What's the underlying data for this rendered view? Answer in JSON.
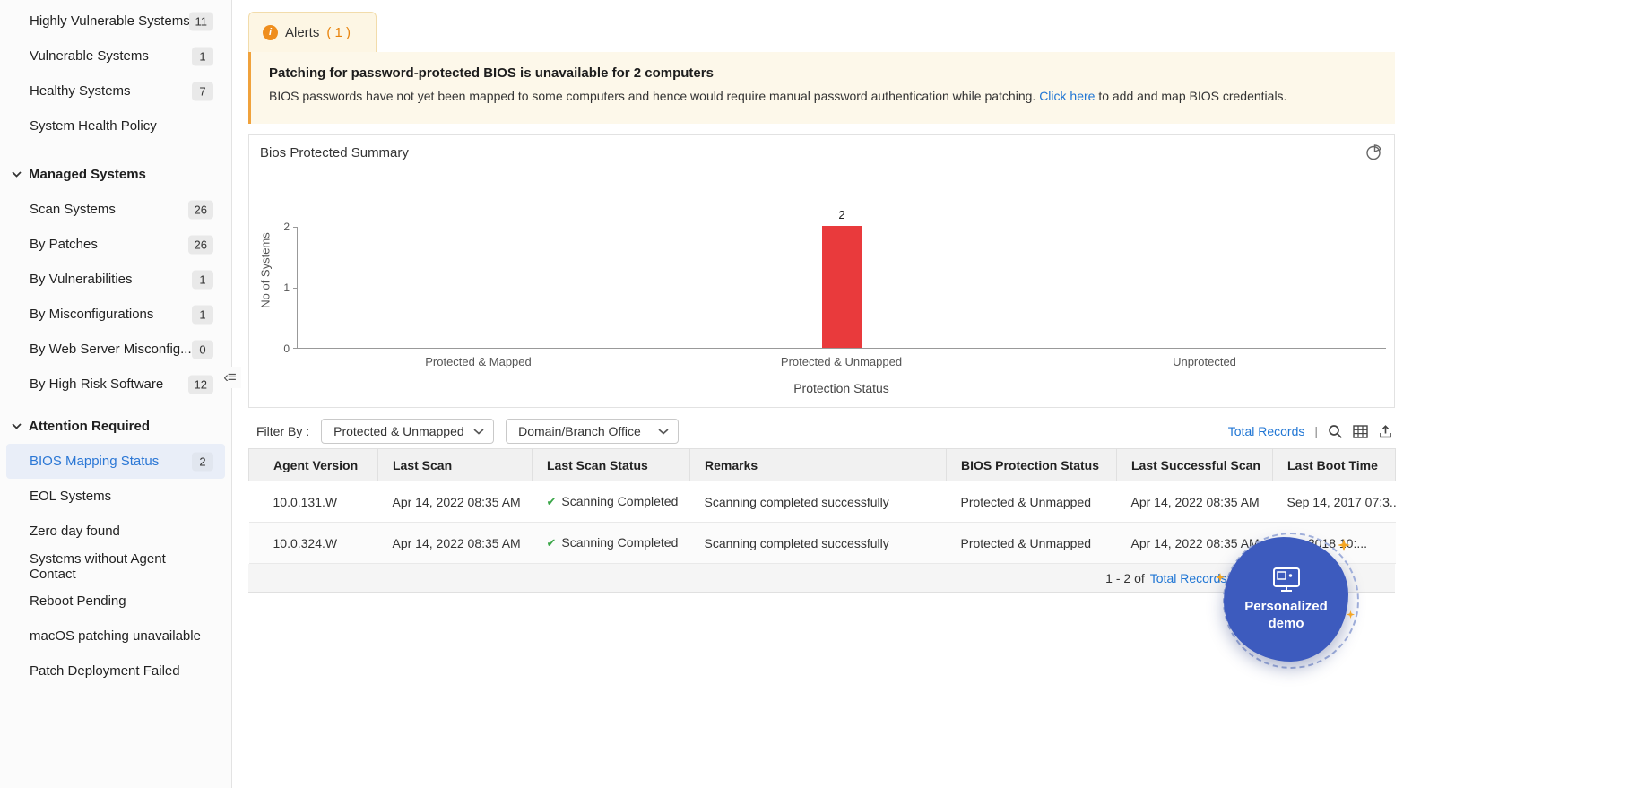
{
  "colors": {
    "accent_blue": "#2076d4",
    "alert_orange": "#f0a23c",
    "bar_red": "#e93a3c",
    "success_green": "#3aa648",
    "demo_blue": "#3d5bbe"
  },
  "icons": {
    "info": "i",
    "check": "✔",
    "collapse": "‹≡"
  },
  "sidebar": {
    "top_items": [
      {
        "label": "Highly Vulnerable Systems",
        "count": "11"
      },
      {
        "label": "Vulnerable Systems",
        "count": "1"
      },
      {
        "label": "Healthy Systems",
        "count": "7"
      },
      {
        "label": "System Health Policy"
      }
    ],
    "sections": [
      {
        "title": "Managed Systems",
        "items": [
          {
            "label": "Scan Systems",
            "count": "26"
          },
          {
            "label": "By Patches",
            "count": "26"
          },
          {
            "label": "By Vulnerabilities",
            "count": "1"
          },
          {
            "label": "By Misconfigurations",
            "count": "1"
          },
          {
            "label": "By Web Server Misconfig...",
            "count": "0"
          },
          {
            "label": "By High Risk Software",
            "count": "12"
          }
        ]
      },
      {
        "title": "Attention Required",
        "items": [
          {
            "label": "BIOS Mapping Status",
            "count": "2"
          },
          {
            "label": "EOL Systems"
          },
          {
            "label": "Zero day found"
          },
          {
            "label": "Systems without Agent Contact"
          },
          {
            "label": "Reboot Pending"
          },
          {
            "label": "macOS patching unavailable"
          },
          {
            "label": "Patch Deployment Failed"
          }
        ]
      }
    ]
  },
  "alerts_tab": {
    "label": "Alerts",
    "count": "( 1 )"
  },
  "alert_banner": {
    "title": "Patching for password-protected BIOS is unavailable for 2 computers",
    "body_before_link": "BIOS passwords have not yet been mapped to some computers and hence would require manual password authentication while patching. ",
    "link_label": "Click here",
    "body_after_link": " to add and map BIOS credentials."
  },
  "chart_data": {
    "type": "bar",
    "title": "Bios Protected Summary",
    "categories": [
      "Protected & Mapped",
      "Protected & Unmapped",
      "Unprotected"
    ],
    "values": [
      0,
      2,
      0
    ],
    "xlabel": "Protection Status",
    "ylabel": "No of Systems",
    "ylim": [
      0,
      2
    ],
    "yticks": [
      0,
      1,
      2
    ],
    "bar_color": "#e93a3c",
    "grid": false,
    "legend": false
  },
  "filter_bar": {
    "label": "Filter By :",
    "protection_filter_value": "Protected & Unmapped",
    "office_filter_value": "Domain/Branch Office",
    "total_records_label": "Total Records",
    "separator": "|"
  },
  "table": {
    "columns": [
      "Agent Version",
      "Last Scan",
      "Last Scan Status",
      "Remarks",
      "BIOS Protection Status",
      "Last Successful Scan",
      "Last Boot Time"
    ],
    "rows": [
      {
        "agent_version": "10.0.131.W",
        "last_scan": "Apr 14, 2022 08:35 AM",
        "last_scan_status": "Scanning Completed",
        "remarks": "Scanning completed successfully",
        "bios_protection_status": "Protected & Unmapped",
        "last_successful_scan": "Apr 14, 2022 08:35 AM",
        "last_boot_time": "Sep 14, 2017 07:3..."
      },
      {
        "agent_version": "10.0.324.W",
        "last_scan": "Apr 14, 2022 08:35 AM",
        "last_scan_status": "Scanning Completed",
        "remarks": "Scanning completed successfully",
        "bios_protection_status": "Protected & Unmapped",
        "last_successful_scan": "Apr 14, 2022 08:35 AM",
        "last_boot_time": "19, 2018 10:..."
      }
    ],
    "footer": {
      "range_label": "1 - 2 of",
      "total_records_label": "Total Records",
      "separator": "|"
    }
  },
  "demo_badge": {
    "line1": "Personalized",
    "line2": "demo"
  }
}
